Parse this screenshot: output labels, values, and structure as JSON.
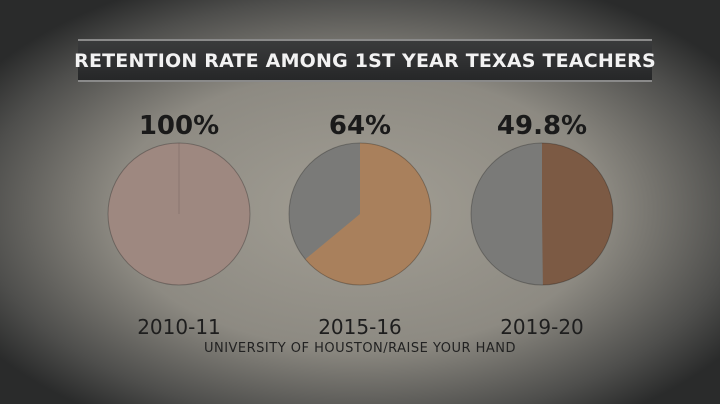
{
  "chart_data": {
    "type": "pie",
    "title": "RETENTION RATE AMONG 1ST YEAR TEXAS TEACHERS",
    "source": "UNIVERSITY OF HOUSTON/RAISE YOUR HAND",
    "pies": [
      {
        "category": "2010-11",
        "value": 100,
        "label": "100%",
        "color": "#9e8880",
        "remainder_color": "#7a7a78"
      },
      {
        "category": "2015-16",
        "value": 64,
        "label": "64%",
        "color": "#a9805c",
        "remainder_color": "#7a7a78"
      },
      {
        "category": "2019-20",
        "value": 49.8,
        "label": "49.8%",
        "color": "#7c5a44",
        "remainder_color": "#7a7a78"
      }
    ]
  }
}
